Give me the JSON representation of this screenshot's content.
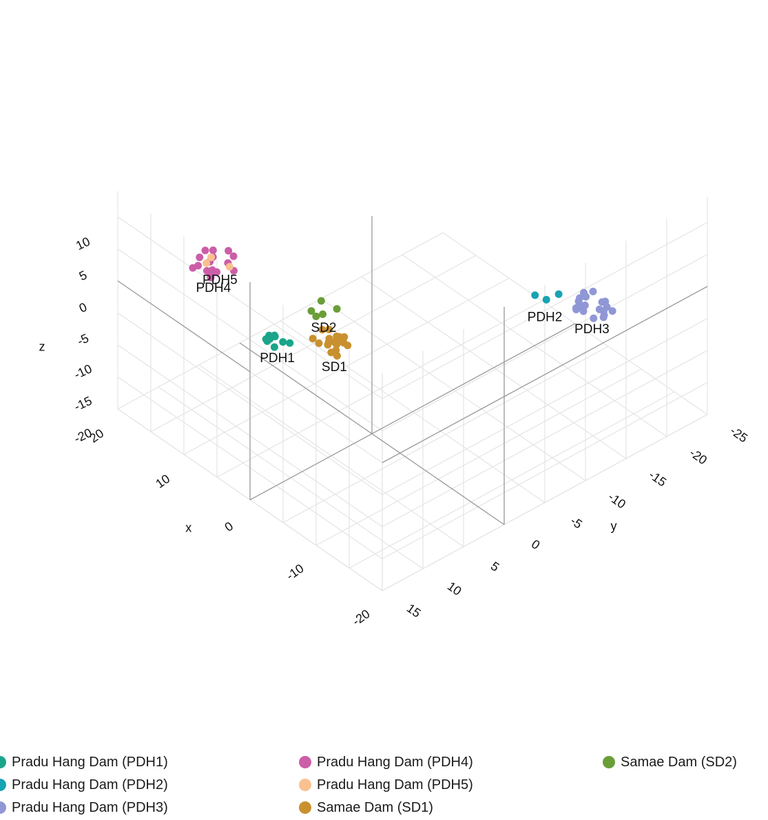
{
  "chart_data": {
    "type": "scatter",
    "dimensions": 3,
    "axes": {
      "x": {
        "label": "x",
        "ticks": [
          "20",
          "10",
          "0",
          "-10",
          "-20"
        ]
      },
      "y": {
        "label": "y",
        "ticks": [
          "-25",
          "-20",
          "-15",
          "-10",
          "-5",
          "0",
          "5",
          "10",
          "15"
        ]
      },
      "z": {
        "label": "z",
        "ticks": [
          "10",
          "5",
          "0",
          "-5",
          "-10",
          "-15",
          "-20"
        ]
      }
    },
    "grid": true,
    "legend_position": "bottom",
    "series": [
      {
        "name": "Pradu Hang Dam (PDH1)",
        "cluster_label": "PDH1",
        "color": "#1aa58a",
        "centroid": {
          "x": 18,
          "y": -3,
          "z": -20
        },
        "n_points": 9
      },
      {
        "name": "Pradu Hang Dam (PDH2)",
        "cluster_label": "PDH2",
        "color": "#18a3b3",
        "centroid": {
          "x": -20,
          "y": -5,
          "z": 12
        },
        "n_points": 3
      },
      {
        "name": "Pradu Hang Dam (PDH3)",
        "cluster_label": "PDH3",
        "color": "#8f97d6",
        "centroid": {
          "x": -5,
          "y": -23,
          "z": -12
        },
        "n_points": 20
      },
      {
        "name": "Pradu Hang Dam (PDH4)",
        "cluster_label": "PDH4",
        "color": "#cc5ea8",
        "centroid": {
          "x": 8,
          "y": 13,
          "z": 10
        },
        "n_points": 16
      },
      {
        "name": "Pradu Hang Dam (PDH5)",
        "cluster_label": "PDH5",
        "color": "#f9c190",
        "centroid": {
          "x": 7,
          "y": 13,
          "z": 11
        },
        "n_points": 3
      },
      {
        "name": "Samae Dam (SD1)",
        "cluster_label": "SD1",
        "color": "#c9902f",
        "centroid": {
          "x": 2,
          "y": 3,
          "z": -5
        },
        "n_points": 18
      },
      {
        "name": "Samae Dam (SD2)",
        "cluster_label": "SD2",
        "color": "#6a9e38",
        "centroid": {
          "x": -5,
          "y": 10,
          "z": 10
        },
        "n_points": 5
      }
    ]
  }
}
